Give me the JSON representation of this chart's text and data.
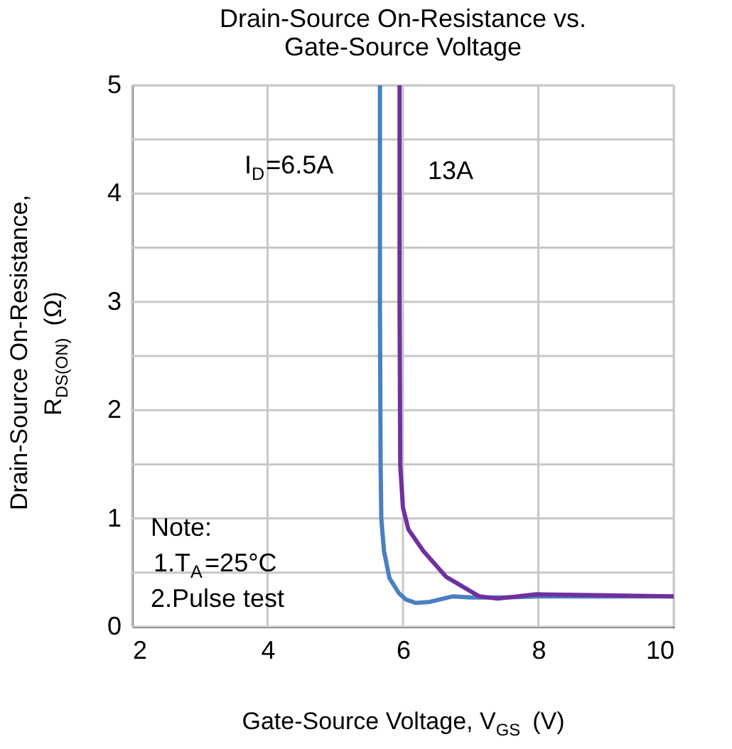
{
  "chart_data": {
    "type": "line",
    "title": [
      "Drain-Source On-Resistance vs.",
      "Gate-Source Voltage"
    ],
    "xlabel": "Gate-Source Voltage, V$_{GS}$ (V)",
    "ylabel": [
      "Drain-Source On-Resistance,",
      "R$_{DS(ON)}$ (Ω)"
    ],
    "series": [
      {
        "color": "#4a7fc1",
        "x": [
          5.66,
          5.66,
          5.67,
          5.68,
          5.72,
          5.8,
          5.94,
          6.05,
          6.19,
          6.4,
          6.73,
          7.0,
          7.5,
          8.0,
          9.0,
          10
        ],
        "values": [
          5.0,
          3.0,
          1.5,
          1.0,
          0.7,
          0.45,
          0.31,
          0.25,
          0.22,
          0.23,
          0.28,
          0.27,
          0.27,
          0.28,
          0.28,
          0.28
        ]
      },
      {
        "color": "#7030a0",
        "x": [
          5.95,
          5.95,
          5.96,
          6.0,
          6.08,
          6.3,
          6.64,
          7.13,
          7.4,
          7.97,
          9.0,
          10
        ],
        "values": [
          5.0,
          3.0,
          1.49,
          1.1,
          0.9,
          0.7,
          0.46,
          0.28,
          0.26,
          0.3,
          0.29,
          0.28
        ]
      }
    ],
    "xlim": [
      2,
      10
    ],
    "xticks": [
      2,
      4,
      6,
      8,
      10
    ],
    "ylim": [
      0,
      5
    ],
    "yticks": [
      0,
      {
        "value": 0.5,
        "label": null
      },
      1,
      {
        "value": 1.5,
        "label": null
      },
      2,
      {
        "value": 2.5,
        "label": null
      },
      3,
      {
        "value": 3.5,
        "label": null
      },
      4,
      {
        "value": 4.5,
        "label": null
      },
      5
    ],
    "grid": true,
    "legend": false,
    "marker": "none",
    "line_style": "solid",
    "annotations": [
      "I$_{D}$=6.5A",
      "13A",
      "Note:\n1.T$_{A}$=25°C\n2.Pulse test"
    ]
  }
}
